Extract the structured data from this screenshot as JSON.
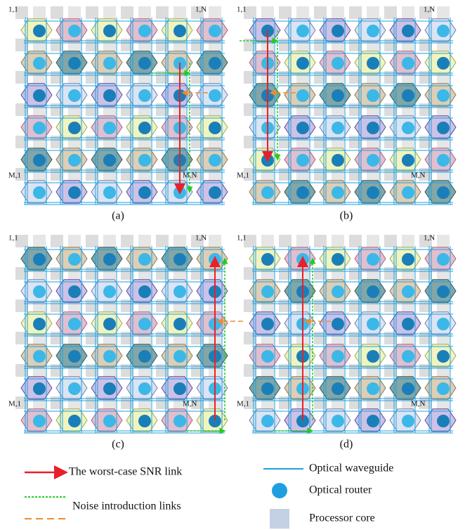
{
  "panels": [
    {
      "label": "(a)",
      "corners": {
        "top_left": "1,1",
        "top_right": "1,N",
        "bottom_left": "M,1",
        "bottom_right": "M,N"
      }
    },
    {
      "label": "(b)",
      "corners": {
        "top_left": "1,1",
        "top_right": "1,N",
        "bottom_left": "M,1",
        "bottom_right": "M,N"
      }
    },
    {
      "label": "(c)",
      "corners": {
        "top_left": "1,1",
        "top_right": "1,N",
        "bottom_left": "M,1",
        "bottom_right": "M,N"
      }
    },
    {
      "label": "(d)",
      "corners": {
        "top_left": "1,1",
        "top_right": "1,N",
        "bottom_left": "M,1",
        "bottom_right": "M,N"
      }
    }
  ],
  "legend": {
    "worst_case": "The worst-case SNR link",
    "noise": "Noise introduction links",
    "waveguide": "Optical waveguide",
    "router": "Optical router",
    "core": "Processor core"
  }
}
